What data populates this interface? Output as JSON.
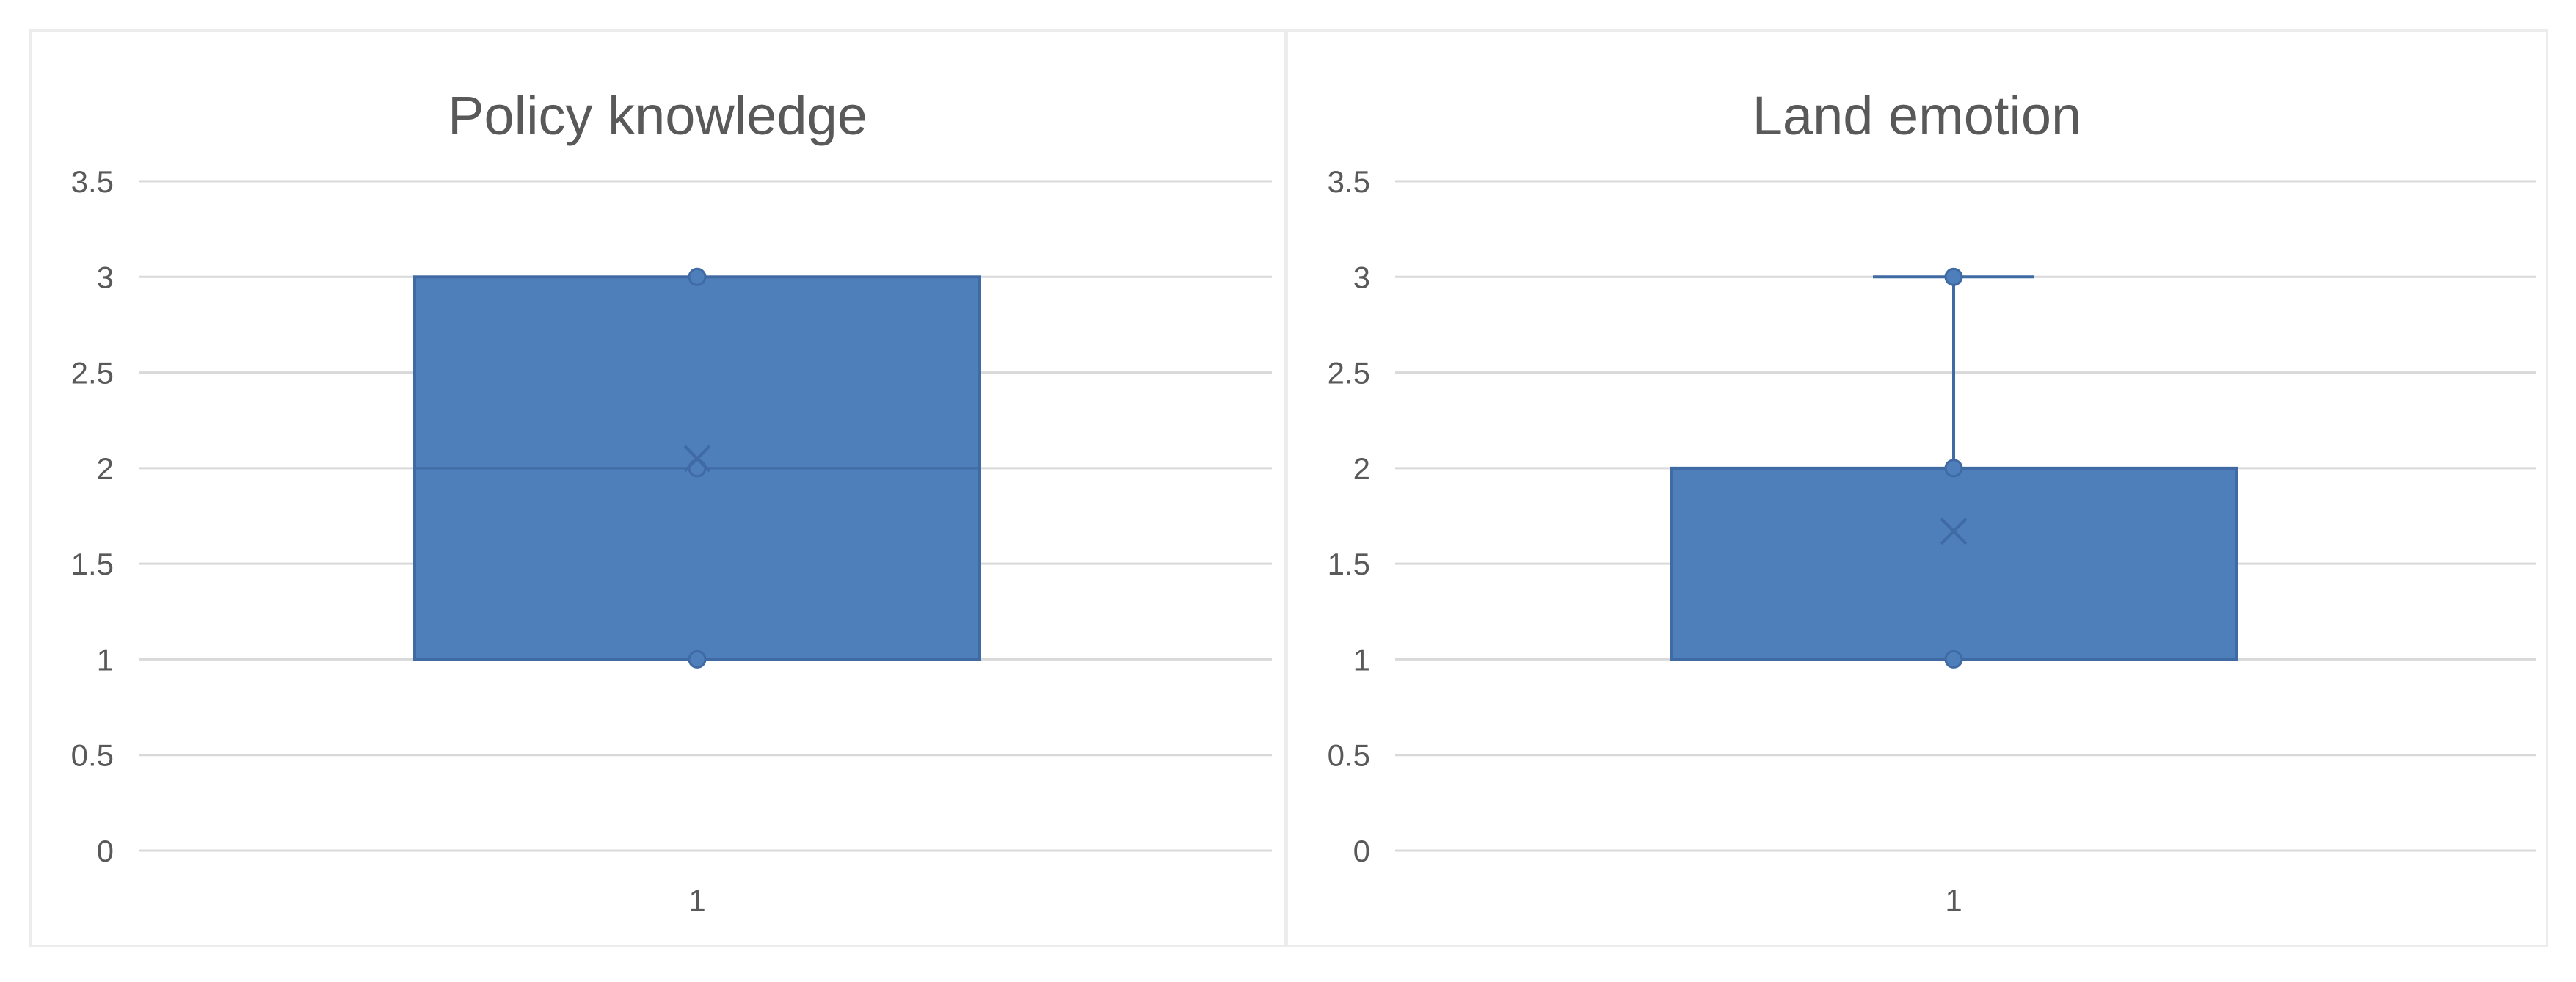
{
  "chart_data": [
    {
      "type": "box",
      "title": "Policy knowledge",
      "categories": [
        "1"
      ],
      "ylim": [
        0,
        3.5
      ],
      "yticks": [
        "0",
        "0.5",
        "1",
        "1.5",
        "2",
        "2.5",
        "3",
        "3.5"
      ],
      "grid": true,
      "box": {
        "min": 1,
        "q1": 1,
        "median": 2,
        "q3": 3,
        "max": 3,
        "mean": 2.05
      },
      "points": [
        1,
        2,
        3
      ]
    },
    {
      "type": "box",
      "title": "Land emotion",
      "categories": [
        "1"
      ],
      "ylim": [
        0,
        3.5
      ],
      "yticks": [
        "0",
        "0.5",
        "1",
        "1.5",
        "2",
        "2.5",
        "3",
        "3.5"
      ],
      "grid": true,
      "box": {
        "min": 1,
        "q1": 1,
        "median": 1,
        "q3": 2,
        "max": 3,
        "mean": 1.67
      },
      "points": [
        1,
        2,
        3
      ]
    }
  ],
  "colors": {
    "box_fill": "#4e7fbb",
    "box_stroke": "#3f6aa3",
    "grid": "#d9d9d9",
    "axis_text": "#595959"
  }
}
